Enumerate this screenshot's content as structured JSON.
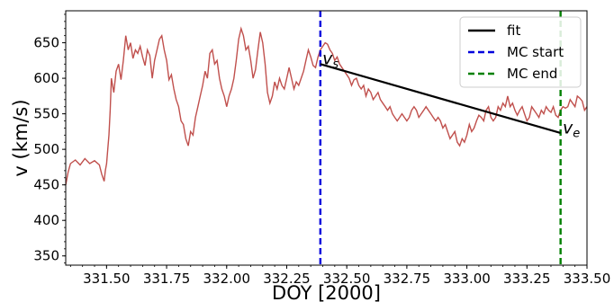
{
  "chart_data": {
    "type": "line",
    "xlabel": "DOY [2000]",
    "ylabel": "v (km/s)",
    "xlim": [
      331.33,
      333.5
    ],
    "ylim": [
      337,
      695
    ],
    "x_ticks": [
      331.5,
      331.75,
      332.0,
      332.25,
      332.5,
      332.75,
      333.0,
      333.25,
      333.5
    ],
    "x_tick_labels": [
      "331.50",
      "331.75",
      "332.00",
      "332.25",
      "332.50",
      "332.75",
      "333.00",
      "333.25",
      "333.50"
    ],
    "y_ticks": [
      350,
      400,
      450,
      500,
      550,
      600,
      650
    ],
    "y_tick_labels": [
      "350",
      "400",
      "450",
      "500",
      "550",
      "600",
      "650"
    ],
    "grid": false,
    "legend_position": "top-right",
    "series": [
      {
        "kind": "data",
        "color": "#c0504d",
        "points": [
          [
            331.33,
            450
          ],
          [
            331.34,
            468
          ],
          [
            331.35,
            480
          ],
          [
            331.37,
            485
          ],
          [
            331.39,
            478
          ],
          [
            331.41,
            487
          ],
          [
            331.43,
            480
          ],
          [
            331.45,
            484
          ],
          [
            331.47,
            478
          ],
          [
            331.48,
            465
          ],
          [
            331.49,
            455
          ],
          [
            331.495,
            470
          ],
          [
            331.5,
            480
          ],
          [
            331.505,
            500
          ],
          [
            331.51,
            520
          ],
          [
            331.515,
            555
          ],
          [
            331.52,
            600
          ],
          [
            331.53,
            580
          ],
          [
            331.54,
            610
          ],
          [
            331.55,
            620
          ],
          [
            331.56,
            598
          ],
          [
            331.57,
            625
          ],
          [
            331.58,
            660
          ],
          [
            331.59,
            640
          ],
          [
            331.6,
            650
          ],
          [
            331.61,
            628
          ],
          [
            331.62,
            640
          ],
          [
            331.63,
            635
          ],
          [
            331.64,
            645
          ],
          [
            331.65,
            630
          ],
          [
            331.66,
            618
          ],
          [
            331.67,
            640
          ],
          [
            331.68,
            632
          ],
          [
            331.69,
            600
          ],
          [
            331.7,
            625
          ],
          [
            331.71,
            640
          ],
          [
            331.72,
            655
          ],
          [
            331.73,
            660
          ],
          [
            331.74,
            640
          ],
          [
            331.75,
            625
          ],
          [
            331.76,
            598
          ],
          [
            331.77,
            605
          ],
          [
            331.78,
            585
          ],
          [
            331.79,
            570
          ],
          [
            331.8,
            560
          ],
          [
            331.81,
            540
          ],
          [
            331.82,
            535
          ],
          [
            331.83,
            515
          ],
          [
            331.84,
            505
          ],
          [
            331.85,
            525
          ],
          [
            331.86,
            520
          ],
          [
            331.87,
            545
          ],
          [
            331.88,
            560
          ],
          [
            331.89,
            575
          ],
          [
            331.9,
            590
          ],
          [
            331.91,
            610
          ],
          [
            331.92,
            600
          ],
          [
            331.93,
            635
          ],
          [
            331.94,
            640
          ],
          [
            331.95,
            620
          ],
          [
            331.96,
            625
          ],
          [
            331.97,
            600
          ],
          [
            331.98,
            585
          ],
          [
            331.99,
            575
          ],
          [
            332.0,
            560
          ],
          [
            332.01,
            575
          ],
          [
            332.02,
            585
          ],
          [
            332.03,
            600
          ],
          [
            332.04,
            625
          ],
          [
            332.05,
            655
          ],
          [
            332.06,
            670
          ],
          [
            332.07,
            660
          ],
          [
            332.08,
            640
          ],
          [
            332.09,
            645
          ],
          [
            332.1,
            625
          ],
          [
            332.11,
            600
          ],
          [
            332.12,
            612
          ],
          [
            332.13,
            640
          ],
          [
            332.14,
            665
          ],
          [
            332.15,
            650
          ],
          [
            332.16,
            620
          ],
          [
            332.17,
            580
          ],
          [
            332.18,
            565
          ],
          [
            332.19,
            575
          ],
          [
            332.2,
            595
          ],
          [
            332.21,
            585
          ],
          [
            332.22,
            600
          ],
          [
            332.23,
            590
          ],
          [
            332.24,
            585
          ],
          [
            332.25,
            600
          ],
          [
            332.26,
            615
          ],
          [
            332.27,
            600
          ],
          [
            332.28,
            585
          ],
          [
            332.29,
            595
          ],
          [
            332.3,
            590
          ],
          [
            332.31,
            600
          ],
          [
            332.32,
            610
          ],
          [
            332.33,
            625
          ],
          [
            332.34,
            640
          ],
          [
            332.35,
            630
          ],
          [
            332.36,
            618
          ],
          [
            332.37,
            615
          ],
          [
            332.38,
            630
          ],
          [
            332.39,
            640
          ],
          [
            332.4,
            645
          ],
          [
            332.41,
            650
          ],
          [
            332.42,
            648
          ],
          [
            332.43,
            640
          ],
          [
            332.44,
            635
          ],
          [
            332.45,
            625
          ],
          [
            332.46,
            630
          ],
          [
            332.47,
            620
          ],
          [
            332.48,
            615
          ],
          [
            332.49,
            610
          ],
          [
            332.5,
            605
          ],
          [
            332.51,
            600
          ],
          [
            332.52,
            590
          ],
          [
            332.53,
            598
          ],
          [
            332.54,
            600
          ],
          [
            332.55,
            590
          ],
          [
            332.56,
            585
          ],
          [
            332.57,
            590
          ],
          [
            332.58,
            575
          ],
          [
            332.59,
            585
          ],
          [
            332.6,
            580
          ],
          [
            332.61,
            570
          ],
          [
            332.62,
            575
          ],
          [
            332.63,
            580
          ],
          [
            332.64,
            570
          ],
          [
            332.65,
            565
          ],
          [
            332.66,
            560
          ],
          [
            332.67,
            555
          ],
          [
            332.68,
            560
          ],
          [
            332.69,
            550
          ],
          [
            332.7,
            545
          ],
          [
            332.71,
            540
          ],
          [
            332.72,
            545
          ],
          [
            332.73,
            550
          ],
          [
            332.74,
            545
          ],
          [
            332.75,
            540
          ],
          [
            332.76,
            545
          ],
          [
            332.77,
            555
          ],
          [
            332.78,
            560
          ],
          [
            332.79,
            555
          ],
          [
            332.8,
            545
          ],
          [
            332.81,
            550
          ],
          [
            332.82,
            555
          ],
          [
            332.83,
            560
          ],
          [
            332.84,
            555
          ],
          [
            332.85,
            550
          ],
          [
            332.86,
            545
          ],
          [
            332.87,
            540
          ],
          [
            332.88,
            545
          ],
          [
            332.89,
            540
          ],
          [
            332.9,
            530
          ],
          [
            332.91,
            535
          ],
          [
            332.92,
            525
          ],
          [
            332.93,
            515
          ],
          [
            332.94,
            520
          ],
          [
            332.95,
            525
          ],
          [
            332.96,
            510
          ],
          [
            332.97,
            505
          ],
          [
            332.98,
            515
          ],
          [
            332.99,
            510
          ],
          [
            333.0,
            520
          ],
          [
            333.01,
            535
          ],
          [
            333.02,
            525
          ],
          [
            333.03,
            530
          ],
          [
            333.04,
            540
          ],
          [
            333.05,
            548
          ],
          [
            333.06,
            545
          ],
          [
            333.07,
            540
          ],
          [
            333.08,
            555
          ],
          [
            333.09,
            560
          ],
          [
            333.1,
            545
          ],
          [
            333.11,
            540
          ],
          [
            333.12,
            545
          ],
          [
            333.13,
            560
          ],
          [
            333.14,
            555
          ],
          [
            333.15,
            565
          ],
          [
            333.16,
            560
          ],
          [
            333.17,
            575
          ],
          [
            333.18,
            560
          ],
          [
            333.19,
            565
          ],
          [
            333.2,
            555
          ],
          [
            333.21,
            548
          ],
          [
            333.22,
            555
          ],
          [
            333.23,
            560
          ],
          [
            333.24,
            550
          ],
          [
            333.25,
            540
          ],
          [
            333.26,
            545
          ],
          [
            333.27,
            560
          ],
          [
            333.28,
            555
          ],
          [
            333.29,
            550
          ],
          [
            333.3,
            545
          ],
          [
            333.31,
            555
          ],
          [
            333.32,
            550
          ],
          [
            333.33,
            560
          ],
          [
            333.34,
            555
          ],
          [
            333.35,
            552
          ],
          [
            333.36,
            560
          ],
          [
            333.37,
            548
          ],
          [
            333.38,
            545
          ],
          [
            333.39,
            555
          ],
          [
            333.4,
            560
          ],
          [
            333.41,
            558
          ],
          [
            333.42,
            560
          ],
          [
            333.43,
            570
          ],
          [
            333.44,
            565
          ],
          [
            333.45,
            560
          ],
          [
            333.46,
            575
          ],
          [
            333.47,
            572
          ],
          [
            333.48,
            568
          ],
          [
            333.49,
            555
          ],
          [
            333.5,
            560
          ]
        ]
      },
      {
        "kind": "fit",
        "name": "fit",
        "color": "#000000",
        "x": [
          332.39,
          333.39
        ],
        "y": [
          620,
          523
        ]
      }
    ],
    "vertical_lines": [
      {
        "name": "MC start",
        "x": 332.39,
        "color": "#0000dd",
        "dash": true
      },
      {
        "name": "MC end",
        "x": 333.39,
        "color": "#008000",
        "dash": true
      }
    ],
    "annotations": [
      {
        "base": "v",
        "sub": "s",
        "x": 332.395,
        "y": 622
      },
      {
        "base": "v",
        "sub": "e",
        "x": 333.395,
        "y": 525
      }
    ],
    "legend": [
      {
        "label": "fit",
        "color": "#000000",
        "dash": false
      },
      {
        "label": "MC start",
        "color": "#0000dd",
        "dash": true
      },
      {
        "label": "MC end",
        "color": "#008000",
        "dash": true
      }
    ]
  }
}
